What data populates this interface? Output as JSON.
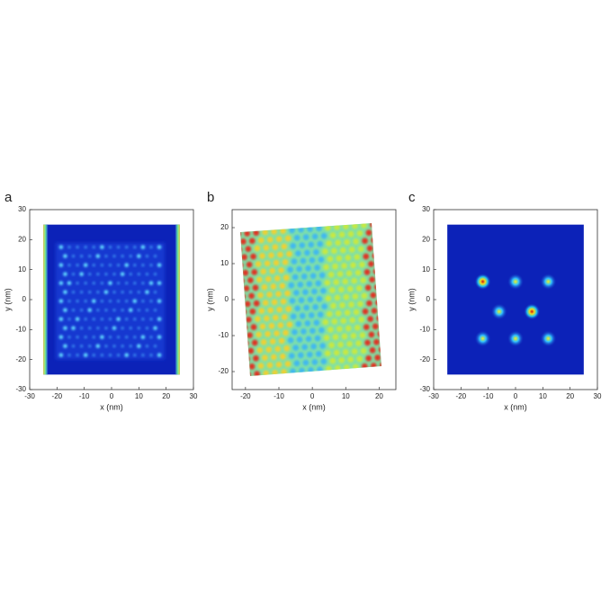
{
  "chart_data": [
    {
      "type": "heatmap",
      "panel_label": "a",
      "xlabel": "x (nm)",
      "ylabel": "y (nm)",
      "xlim": [
        -30,
        30
      ],
      "ylim": [
        -30,
        30
      ],
      "xticks": [
        -30,
        -20,
        -10,
        0,
        10,
        20,
        30
      ],
      "yticks": [
        -30,
        -20,
        -10,
        0,
        10,
        20,
        30
      ]
    },
    {
      "type": "heatmap",
      "panel_label": "b",
      "xlabel": "x (nm)",
      "ylabel": "y (nm)",
      "xlim": [
        -24,
        25
      ],
      "ylim": [
        -25,
        25
      ],
      "xticks": [
        -20,
        -10,
        0,
        10,
        20
      ],
      "yticks": [
        -20,
        -10,
        0,
        10,
        20
      ]
    },
    {
      "type": "heatmap",
      "panel_label": "c",
      "xlabel": "x (nm)",
      "ylabel": "y (nm)",
      "xlim": [
        -30,
        30
      ],
      "ylim": [
        -30,
        30
      ],
      "xticks": [
        -30,
        -20,
        -10,
        0,
        10,
        20,
        30
      ],
      "yticks": [
        -30,
        -20,
        -10,
        0,
        10,
        20,
        30
      ]
    }
  ]
}
